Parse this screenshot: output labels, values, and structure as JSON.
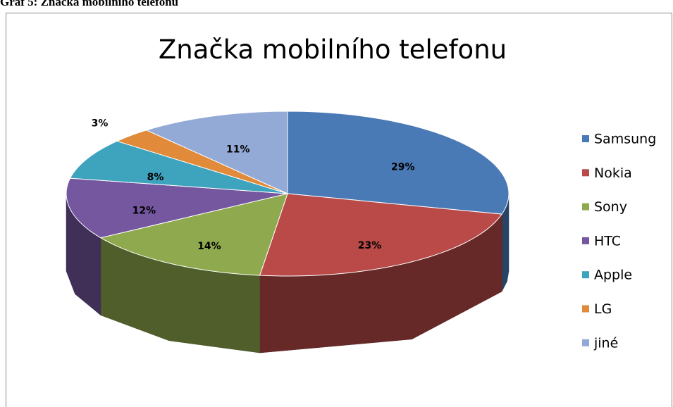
{
  "caption": "Graf 5: Značka mobilního telefonu",
  "chart_data": {
    "type": "pie3d",
    "title": "Značka mobilního telefonu",
    "categories": [
      "Samsung",
      "Nokia",
      "Sony",
      "HTC",
      "Apple",
      "LG",
      "jiné"
    ],
    "values": [
      29,
      23,
      14,
      12,
      8,
      3,
      11
    ],
    "value_labels": [
      "29%",
      "23%",
      "14%",
      "12%",
      "8%",
      "3%",
      "11%"
    ],
    "colors": [
      "#4a7ab5",
      "#b94a48",
      "#8faa4e",
      "#7557a0",
      "#3ea3bd",
      "#e08a3a",
      "#94aad6"
    ],
    "legend": "right"
  }
}
